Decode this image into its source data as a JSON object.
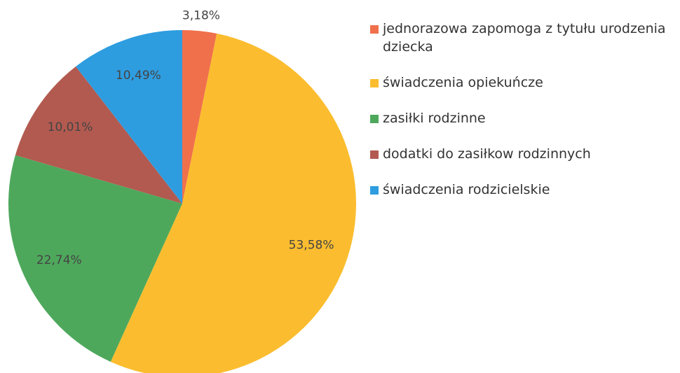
{
  "chart_data": {
    "type": "pie",
    "categories": [
      "jednorazowa zapomoga z tytułu urodzenia dziecka",
      "świadczenia opiekuńcze",
      "zasiłki rodzinne",
      "dodatki do zasiłkow rodzinnych",
      "świadczenia rodzicielskie"
    ],
    "values": [
      3.18,
      53.58,
      22.74,
      10.01,
      10.49
    ],
    "value_labels": [
      "3,18%",
      "53,58%",
      "22,74%",
      "10,01%",
      "10,49%"
    ],
    "colors": [
      "#f0704c",
      "#fbbd2f",
      "#4ea85c",
      "#b25a50",
      "#2e9de0"
    ],
    "legend": "right"
  }
}
